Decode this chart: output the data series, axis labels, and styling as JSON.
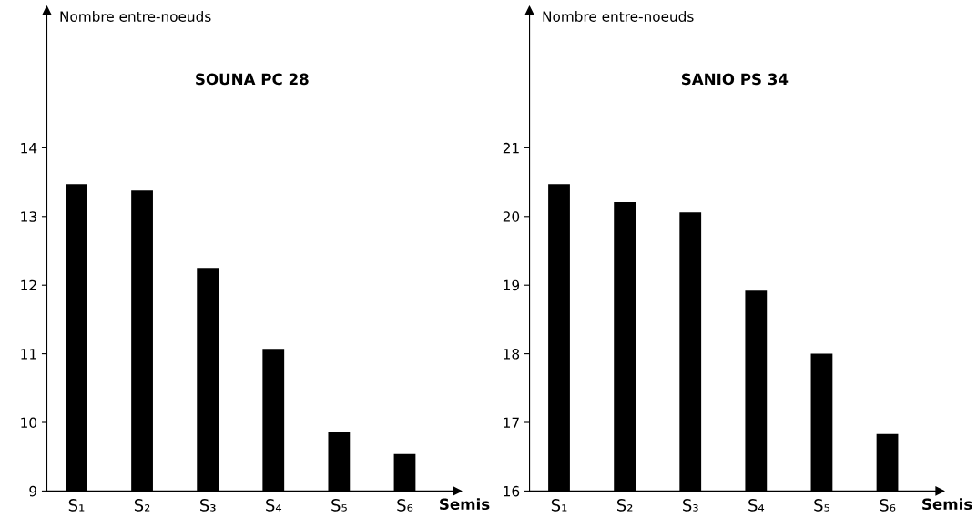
{
  "chart_data": [
    {
      "type": "bar",
      "title": "SOUNA PC 28",
      "ylabel": "Nombre entre-noeuds",
      "xlabel": "Semis",
      "categories": [
        "S₁",
        "S₂",
        "S₃",
        "S₄",
        "S₅",
        "S₆"
      ],
      "values": [
        13.47,
        13.38,
        12.25,
        11.07,
        9.86,
        9.54
      ],
      "color": "#000000",
      "ylim": [
        9,
        16
      ],
      "yticks": [
        9,
        10,
        11,
        12,
        13,
        14
      ],
      "grid": false,
      "legend": false
    },
    {
      "type": "bar",
      "title": "SANIO PS 34",
      "ylabel": "Nombre entre-noeuds",
      "xlabel": "Semis",
      "categories": [
        "S₁",
        "S₂",
        "S₃",
        "S₄",
        "S₅",
        "S₆"
      ],
      "values": [
        20.47,
        20.21,
        20.06,
        18.92,
        18.0,
        16.83
      ],
      "color": "#000000",
      "ylim": [
        16,
        23
      ],
      "yticks": [
        16,
        17,
        18,
        19,
        20,
        21
      ],
      "grid": false,
      "legend": false
    }
  ]
}
